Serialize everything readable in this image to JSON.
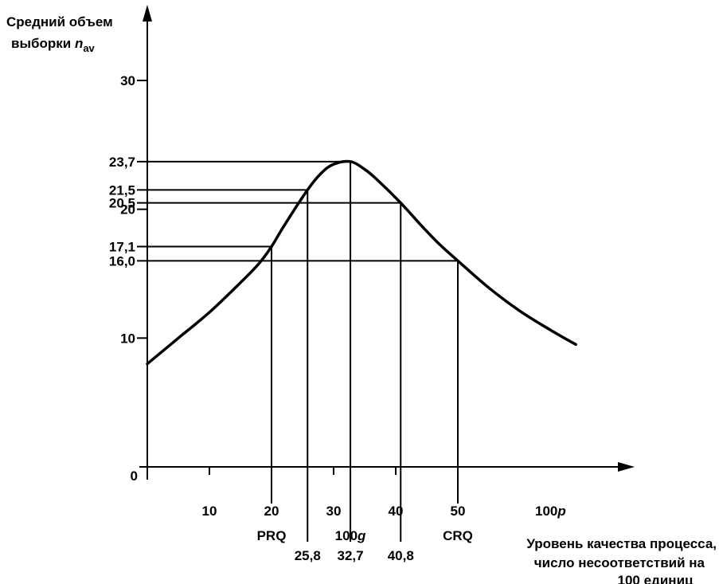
{
  "chart_data": {
    "type": "line",
    "ylabel_line1": "Средний объем",
    "ylabel_line2": "выборки",
    "ylabel_symbol": "n",
    "ylabel_subscript": "av",
    "xlabel_lines": [
      "Уровень качества процесса,",
      "число несоответствий на",
      "100 единиц"
    ],
    "x_ticks": [
      {
        "value": 10,
        "label": "10"
      },
      {
        "value": 20,
        "label": "20"
      },
      {
        "value": 30,
        "label": "30"
      },
      {
        "value": 40,
        "label": "40"
      },
      {
        "value": 50,
        "label": "50"
      }
    ],
    "x_far_label": {
      "prefix": "100",
      "symbol": "p"
    },
    "origin_label": "0",
    "y_ticks": [
      {
        "value": 10,
        "label": "10"
      },
      {
        "value": 20,
        "label": "20"
      },
      {
        "value": 30,
        "label": "30"
      }
    ],
    "ylim": [
      0,
      32
    ],
    "xlim": [
      0,
      75
    ],
    "series": [
      {
        "x": [
          0,
          5,
          10,
          15,
          18,
          20,
          22,
          25.8,
          28,
          30,
          32.7,
          35,
          37,
          40.8,
          44,
          47,
          50,
          55,
          60,
          65,
          69
        ],
        "values": [
          8.0,
          10.0,
          12.0,
          14.3,
          15.8,
          17.1,
          18.7,
          21.5,
          22.8,
          23.5,
          23.7,
          23.1,
          22.3,
          20.5,
          18.8,
          17.3,
          16.0,
          13.9,
          12.1,
          10.6,
          9.5
        ]
      }
    ],
    "reference_points": [
      {
        "x": 20,
        "y": 17.1,
        "y_label": "17,1",
        "x_label": "PRQ",
        "x_label_position": "upper"
      },
      {
        "x": 25.8,
        "y": 21.5,
        "y_label": "21,5",
        "x_label": "25,8",
        "x_label_position": "lower"
      },
      {
        "x": 32.7,
        "y": 23.7,
        "y_label": "23,7",
        "x_label": "32,7",
        "x_label_position": "lower"
      },
      {
        "x": 40.8,
        "y": 20.5,
        "y_label": "20,5",
        "x_label": "40,8",
        "x_label_position": "lower"
      },
      {
        "x": 50,
        "y": 16.0,
        "y_label": "16,0",
        "x_label": "CRQ",
        "x_label_position": "upper"
      }
    ],
    "extra_x_label": {
      "x": 32.7,
      "prefix": "100",
      "symbol": "g"
    },
    "grid": false,
    "legend": "none"
  }
}
